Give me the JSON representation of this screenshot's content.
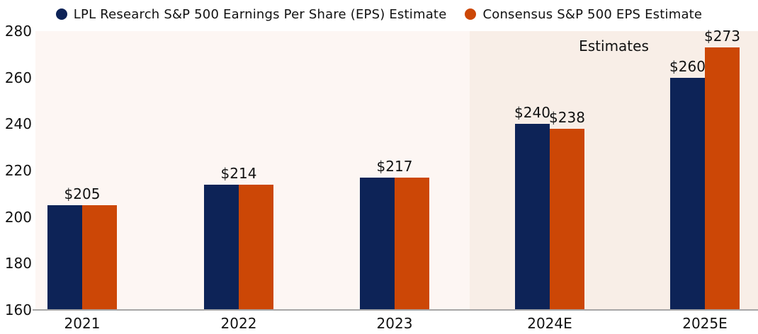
{
  "chart_data": {
    "type": "bar",
    "title": "",
    "categories": [
      "2021",
      "2022",
      "2023",
      "2024E",
      "2025E"
    ],
    "series": [
      {
        "name": "LPL Research S&P 500 Earnings Per Share (EPS) Estimate",
        "color": "#0D2357",
        "values": [
          205,
          214,
          217,
          240,
          260
        ]
      },
      {
        "name": "Consensus S&P 500 EPS Estimate",
        "color": "#CC4706",
        "values": [
          205,
          214,
          217,
          238,
          273
        ]
      }
    ],
    "bar_labels": [
      [
        "$205"
      ],
      [
        "$214"
      ],
      [
        "$217"
      ],
      [
        "$240",
        "$238"
      ],
      [
        "$260",
        "$273"
      ]
    ],
    "annotation": "Estimates",
    "estimates_region_categories": [
      "2024E",
      "2025E"
    ],
    "xlabel": "",
    "ylabel": "",
    "ylim": [
      160,
      280
    ],
    "yticks": [
      280,
      260,
      240,
      220,
      200,
      180,
      160
    ],
    "grid": false,
    "legend_position": "top",
    "colors": {
      "plot_bg": "#FDF6F3",
      "estimates_bg": "#F8EEE7",
      "axis_line": "#A6A6A6",
      "text": "#111111"
    }
  }
}
